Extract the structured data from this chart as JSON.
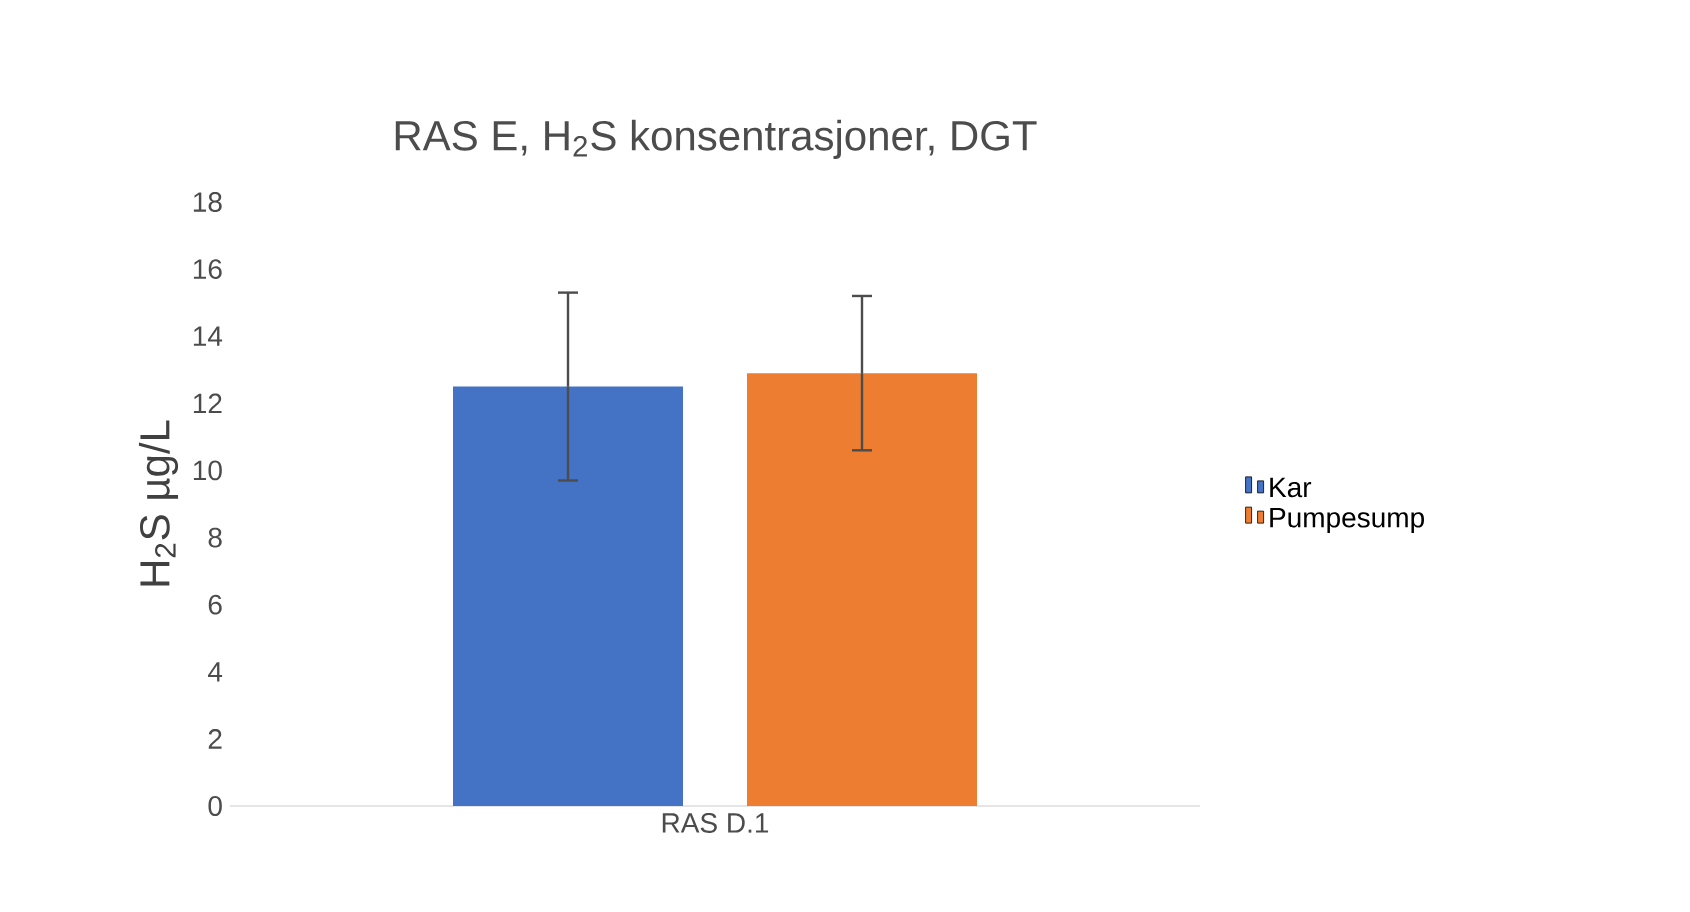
{
  "chart_data": {
    "type": "bar",
    "title": "RAS E, H$_{2}$S konsentrasjoner, DGT",
    "ylabel": "H$_{2}$S µg/L",
    "categories": [
      "RAS D.1"
    ],
    "series": [
      {
        "name": "Kar",
        "color": "#4472c4",
        "values": [
          12.5
        ],
        "errors": [
          [
            9.7,
            15.3
          ]
        ]
      },
      {
        "name": "Pumpesump",
        "color": "#ed7d31",
        "values": [
          12.9
        ],
        "errors": [
          [
            10.6,
            15.2
          ]
        ]
      }
    ],
    "ylim": [
      0,
      18
    ],
    "yticks": [
      0,
      2,
      4,
      6,
      8,
      10,
      12,
      14,
      16,
      18
    ],
    "grid": false,
    "legend": "right"
  }
}
